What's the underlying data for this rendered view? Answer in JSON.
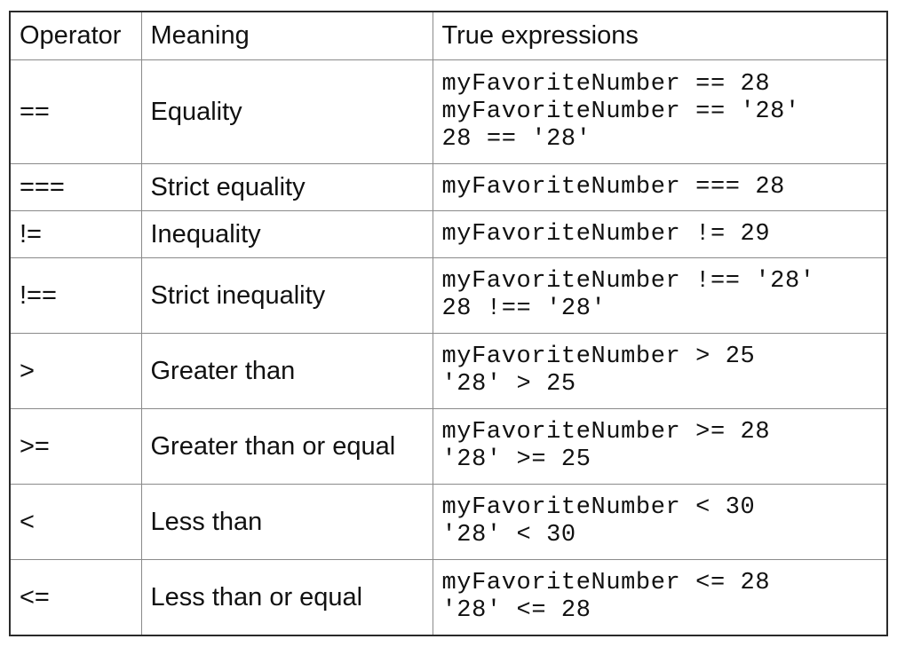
{
  "table": {
    "headers": [
      "Operator",
      "Meaning",
      "True expressions"
    ],
    "rows": [
      {
        "operator": "==",
        "meaning": "Equality",
        "expressions": [
          "myFavoriteNumber == 28",
          "myFavoriteNumber == '28'",
          "28 == '28'"
        ]
      },
      {
        "operator": "===",
        "meaning": "Strict equality",
        "expressions": [
          "myFavoriteNumber === 28"
        ]
      },
      {
        "operator": "!=",
        "meaning": "Inequality",
        "expressions": [
          "myFavoriteNumber != 29"
        ]
      },
      {
        "operator": "!==",
        "meaning": "Strict inequality",
        "expressions": [
          "myFavoriteNumber !== '28'",
          "28 !== '28'"
        ]
      },
      {
        "operator": ">",
        "meaning": "Greater than",
        "expressions": [
          "myFavoriteNumber > 25",
          "'28' > 25"
        ]
      },
      {
        "operator": ">=",
        "meaning": "Greater than or equal",
        "expressions": [
          "myFavoriteNumber >= 28",
          "'28' >= 25"
        ]
      },
      {
        "operator": "<",
        "meaning": "Less than",
        "expressions": [
          "myFavoriteNumber < 30",
          "'28' < 30"
        ]
      },
      {
        "operator": "<=",
        "meaning": "Less than or equal",
        "expressions": [
          "myFavoriteNumber <= 28",
          "'28' <= 28"
        ]
      }
    ]
  }
}
